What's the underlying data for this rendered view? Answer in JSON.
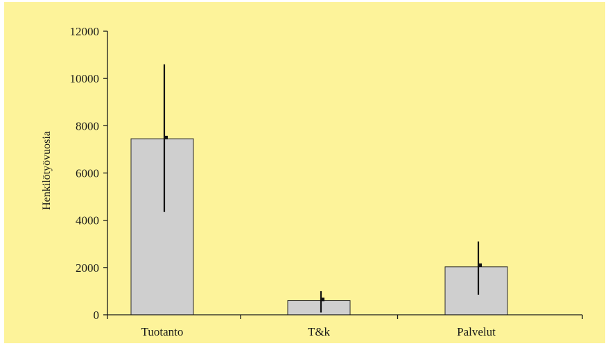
{
  "chart_data": {
    "type": "bar",
    "title": "",
    "xlabel": "",
    "ylabel": "Henkilötyövuosia",
    "ylim": [
      0,
      12000
    ],
    "yticks": [
      0,
      2000,
      4000,
      6000,
      8000,
      10000,
      12000
    ],
    "grid": false,
    "legend": "none",
    "categories": [
      "Tuotanto",
      "T&k",
      "Palvelut"
    ],
    "series": [
      {
        "values": [
          7450,
          600,
          2030
        ],
        "error_bars": {
          "low": [
            4350,
            100,
            850
          ],
          "high": [
            10600,
            1000,
            3100
          ],
          "marker": [
            7500,
            650,
            2100
          ]
        }
      }
    ],
    "colors": {
      "background": "#fdf39a",
      "bar_fill": "#cfcfcf",
      "bar_stroke": "#2a2a2a",
      "axis": "#1a1a1a"
    }
  }
}
